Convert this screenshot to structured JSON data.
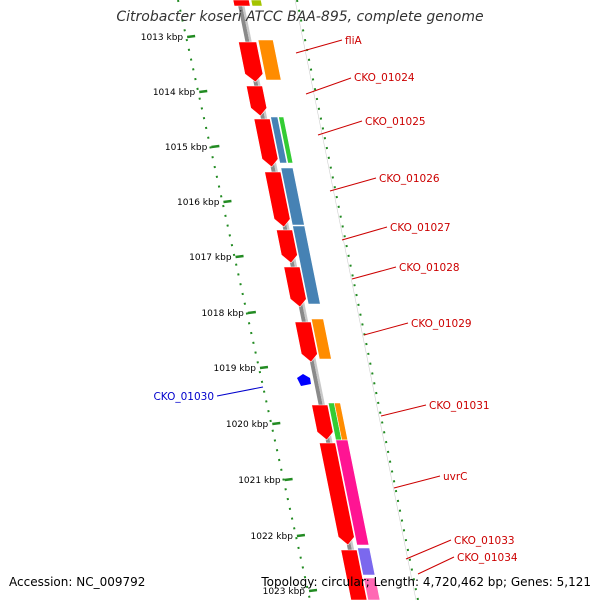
{
  "title": "Citrobacter koseri ATCC BAA-895, complete genome",
  "footer": {
    "accession": "Accession: NC_009792",
    "summary": "Topology: circular; Length: 4,720,462 bp; Genes: 5,121"
  },
  "colors": {
    "backbone": "#8a8a8a",
    "ruler": "#228B22",
    "cds": "#ff0000",
    "label_red": "#cc0000",
    "label_blue": "#0000cc"
  },
  "ticks": [
    "1013 kbp",
    "1014 kbp",
    "1015 kbp",
    "1016 kbp",
    "1017 kbp",
    "1018 kbp",
    "1019 kbp",
    "1020 kbp",
    "1021 kbp",
    "1022 kbp",
    "1023 kbp"
  ],
  "gene_labels": [
    {
      "text": "fliA",
      "strand": "forward"
    },
    {
      "text": "CKO_01024",
      "strand": "forward"
    },
    {
      "text": "CKO_01025",
      "strand": "forward"
    },
    {
      "text": "CKO_01026",
      "strand": "forward"
    },
    {
      "text": "CKO_01027",
      "strand": "forward"
    },
    {
      "text": "CKO_01028",
      "strand": "forward"
    },
    {
      "text": "CKO_01029",
      "strand": "forward"
    },
    {
      "text": "CKO_01030",
      "strand": "reverse"
    },
    {
      "text": "CKO_01031",
      "strand": "forward"
    },
    {
      "text": "uvrC",
      "strand": "forward"
    },
    {
      "text": "CKO_01033",
      "strand": "forward"
    },
    {
      "text": "CKO_01034",
      "strand": "forward"
    }
  ]
}
